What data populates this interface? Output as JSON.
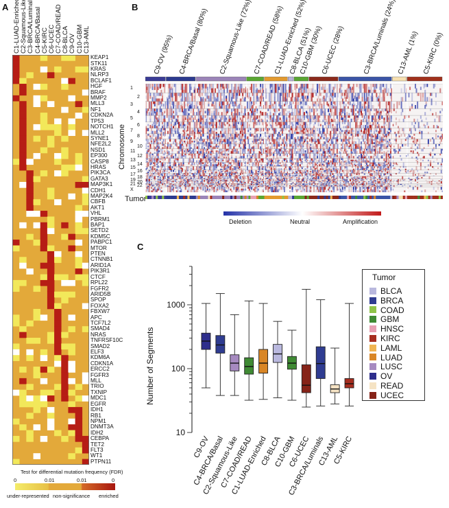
{
  "panel_a": {
    "label": "A",
    "clusters": [
      "C1-LUAD-Enriched",
      "C2-Squamous-Like",
      "C3-BRCA/Luminal",
      "C4-BRCA/Basal",
      "C5-KIRC",
      "C6-UCEC",
      "C7-COAD/READ",
      "C8-BLCA",
      "C9-OV",
      "C10-GBM",
      "C13-AML"
    ],
    "genes": [
      "KEAP1",
      "STK11",
      "KRAS",
      "NLRP3",
      "BCLAF1",
      "HGF",
      "BRAF",
      "MMP2",
      "MLL3",
      "NF1",
      "CDKN2A",
      "TP53",
      "NOTCH1",
      "MLL2",
      "SYNE1",
      "NFE2L2",
      "NSD1",
      "EP300",
      "CASP8",
      "HRAS",
      "PIK3CA",
      "GATA3",
      "MAP3K1",
      "CDH1",
      "MAP2K4",
      "CBFB",
      "AKT1",
      "VHL",
      "PBRM1",
      "BAP1",
      "SETD2",
      "KDM5C",
      "PABPC1",
      "MTOR",
      "PTEN",
      "CTNNB1",
      "ARID1A",
      "PIK3R1",
      "CTCF",
      "RPL22",
      "FGFR2",
      "ARID5B",
      "SPOP",
      "FOXA2",
      "FBXW7",
      "APC",
      "TCF7L2",
      "SMAD4",
      "NRAS",
      "TNFRSF10C",
      "SMAD2",
      "ELF3",
      "KDM6A",
      "CDKN1A",
      "ERCC2",
      "FGFR3",
      "MLL",
      "TRIO",
      "TXNIP",
      "MDC1",
      "EGFR",
      "IDH1",
      "RB1",
      "NPM1",
      "DNMT3A",
      "IDH2",
      "CEBPA",
      "TET2",
      "FLT3",
      "WT1",
      "PTPN11"
    ],
    "legend_title": "Test for differential mutation frequency (FDR)",
    "legend_ticks": [
      "0",
      "0.01",
      "0.01",
      "0"
    ],
    "legend_labels": [
      "under-represented",
      "non-significance",
      "enriched"
    ],
    "colors": {
      "under": "#f2e85a",
      "neutral": "#e3a93a",
      "enriched": "#b61d15",
      "missing": "#ffffff"
    }
  },
  "panel_b": {
    "label": "B",
    "clusters": [
      "C9-OV (95%)",
      "C4-BRCA/Basal (80%)",
      "C2-Squamous-Like (72%)",
      "C7-COAD/READ (58%)",
      "C1-LUAD-Enriched (52%)",
      "C8-BLCA (51%)",
      "C10-GBM (30%)",
      "C6-UCEC (28%)",
      "C3-BRCA/Luminals (24%)",
      "C13-AML (1%)",
      "C5-KIRC (0%)"
    ],
    "cluster_colors": [
      "#3a3b95",
      "#2c3a8f",
      "#9b84b8",
      "#5aa632",
      "#e39a2f",
      "#b9b4d8",
      "#5aa632",
      "#8b2a1c",
      "#3a54a6",
      "#f7e0b0",
      "#a0301c"
    ],
    "chromosomes": [
      "1",
      "2",
      "3",
      "4",
      "5",
      "6",
      "7",
      "8",
      "9",
      "10",
      "11",
      "12",
      "13",
      "14",
      "15",
      "16",
      "17",
      "18",
      "19",
      "20",
      "21",
      "22",
      "X"
    ],
    "y_title": "Chromosome",
    "row_label": "Tumor",
    "colorbar_labels": [
      "Deletion",
      "Neutral",
      "Amplification"
    ]
  },
  "panel_c": {
    "label": "C",
    "legend_title": "Tumor",
    "legend_items": [
      {
        "name": "BLCA",
        "color": "#b9b8de"
      },
      {
        "name": "BRCA",
        "color": "#2f3c91"
      },
      {
        "name": "COAD",
        "color": "#8fc449"
      },
      {
        "name": "GBM",
        "color": "#3f8a34"
      },
      {
        "name": "HNSC",
        "color": "#e7a0b3"
      },
      {
        "name": "KIRC",
        "color": "#a62d1f"
      },
      {
        "name": "LAML",
        "color": "#f0b553"
      },
      {
        "name": "LUAD",
        "color": "#d98626"
      },
      {
        "name": "LUSC",
        "color": "#a68ac0"
      },
      {
        "name": "OV",
        "color": "#2e2e8c"
      },
      {
        "name": "READ",
        "color": "#f5e3c4"
      },
      {
        "name": "UCEC",
        "color": "#862318"
      }
    ]
  },
  "chart_data": {
    "type": "box",
    "ylabel": "Number of Segments",
    "yscale": "log",
    "ylim": [
      10,
      4000
    ],
    "yticks": [
      10,
      100,
      1000
    ],
    "categories": [
      "C9-OV",
      "C4-BRCA/Basal",
      "C2-Squamous-Like",
      "C7-COAD/READ",
      "C1-LUAD-Enriched",
      "C8-BLCA",
      "C10-GBM",
      "C6-UCEC",
      "C3-BRCA/Luminals",
      "C13-AML",
      "C5-KIRC"
    ],
    "boxes": [
      {
        "cat": "C9-OV",
        "min": 50,
        "q1": 200,
        "median": 270,
        "q3": 360,
        "max": 1050,
        "color": "#2e2e8c"
      },
      {
        "cat": "C4-BRCA/Basal",
        "min": 38,
        "q1": 175,
        "median": 235,
        "q3": 330,
        "max": 1500,
        "color": "#2f3c91"
      },
      {
        "cat": "C2-Squamous-Like",
        "min": 38,
        "q1": 92,
        "median": 122,
        "q3": 165,
        "max": 700,
        "color": "#a68ac0"
      },
      {
        "cat": "C7-COAD/READ",
        "min": 32,
        "q1": 82,
        "median": 108,
        "q3": 148,
        "max": 1150,
        "color": "#3f8a34"
      },
      {
        "cat": "C1-LUAD-Enriched",
        "min": 33,
        "q1": 85,
        "median": 122,
        "q3": 200,
        "max": 1050,
        "color": "#d98626"
      },
      {
        "cat": "C8-BLCA",
        "min": 35,
        "q1": 125,
        "median": 170,
        "q3": 240,
        "max": 550,
        "color": "#b9b8de"
      },
      {
        "cat": "C10-GBM",
        "min": 32,
        "q1": 98,
        "median": 122,
        "q3": 155,
        "max": 400,
        "color": "#3f8a34"
      },
      {
        "cat": "C6-UCEC",
        "min": 25,
        "q1": 42,
        "median": 55,
        "q3": 115,
        "max": 1750,
        "color": "#862318"
      },
      {
        "cat": "C3-BRCA/Luminals",
        "min": 26,
        "q1": 70,
        "median": 120,
        "q3": 220,
        "max": 1200,
        "color": "#2f3c91"
      },
      {
        "cat": "C13-AML",
        "min": 28,
        "q1": 42,
        "median": 48,
        "q3": 56,
        "max": 210,
        "color": "#f5e3c4"
      },
      {
        "cat": "C5-KIRC",
        "min": 26,
        "q1": 50,
        "median": 58,
        "q3": 70,
        "max": 1050,
        "color": "#a62d1f"
      }
    ]
  }
}
